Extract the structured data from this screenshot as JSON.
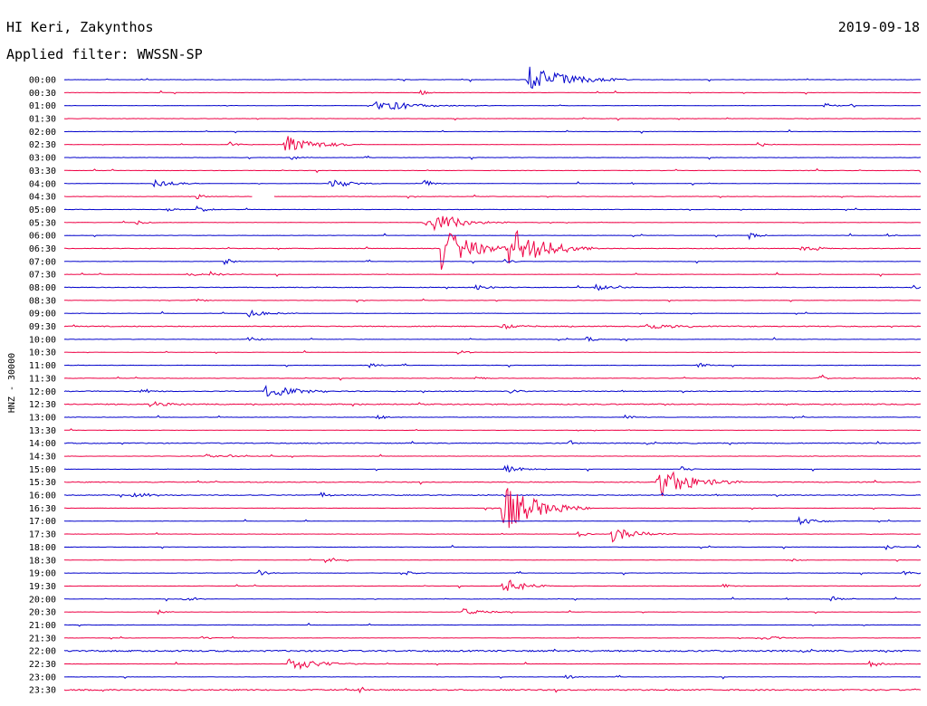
{
  "header": {
    "station": "HI Keri, Zakynthos",
    "filter": "Applied filter: WWSSN-SP",
    "date": "2019-09-18"
  },
  "chart_data": {
    "type": "line",
    "title": "HI Keri, Zakynthos",
    "subtitle": "Applied filter: WWSSN-SP",
    "date": "2019-09-18",
    "ylabel": "HNZ - 30000",
    "xlabel": "",
    "trace_minutes": 30,
    "colors": [
      "#0000cc",
      "#ee0044"
    ],
    "rows": [
      {
        "label": "00:00",
        "events": [
          [
            0.541,
            16,
            0.9,
            0.04
          ]
        ]
      },
      {
        "label": "00:30",
        "events": [
          [
            0.416,
            3,
            0.5,
            0.01
          ]
        ]
      },
      {
        "label": "01:00",
        "events": [
          [
            0.362,
            6,
            0.5,
            0.02
          ],
          [
            0.38,
            4,
            0.3,
            0.04
          ],
          [
            0.888,
            3,
            0.4,
            0.01
          ]
        ]
      },
      {
        "label": "01:30",
        "events": []
      },
      {
        "label": "02:00",
        "events": []
      },
      {
        "label": "02:30",
        "events": [
          [
            0.258,
            11,
            0.7,
            0.03
          ],
          [
            0.193,
            3,
            0.5,
            0.01
          ],
          [
            0.81,
            3,
            0.4,
            0.01
          ]
        ]
      },
      {
        "label": "03:00",
        "events": [
          [
            0.264,
            3,
            0.4,
            0.01
          ]
        ]
      },
      {
        "label": "03:30",
        "events": []
      },
      {
        "label": "04:00",
        "events": [
          [
            0.105,
            5,
            0.6,
            0.02
          ],
          [
            0.31,
            6,
            0.6,
            0.02
          ],
          [
            0.42,
            4,
            0.6,
            0.01
          ]
        ]
      },
      {
        "label": "04:30",
        "events": [
          [
            0.155,
            3,
            0.4,
            0.01
          ]
        ],
        "gap": [
          0.22,
          0.245
        ],
        "noise": 0.5
      },
      {
        "label": "05:00",
        "events": [
          [
            0.155,
            4,
            0.6,
            0.01
          ],
          [
            0.118,
            3,
            0.3,
            0.01
          ]
        ]
      },
      {
        "label": "05:30",
        "events": [
          [
            0.085,
            3,
            0.7,
            0.01
          ],
          [
            0.43,
            12,
            0.8,
            0.03
          ],
          [
            0.42,
            4,
            0.5,
            0.02
          ]
        ]
      },
      {
        "label": "06:00",
        "events": [
          [
            0.8,
            4,
            0.6,
            0.01
          ],
          [
            0.96,
            2,
            0.4,
            0.01
          ]
        ]
      },
      {
        "label": "06:30",
        "events": [
          [
            0.44,
            26,
            1.0,
            0.03
          ],
          [
            0.52,
            26,
            1.0,
            0.035
          ],
          [
            0.86,
            4,
            0.5,
            0.01
          ],
          [
            0.88,
            3,
            0.3,
            0.01
          ]
        ],
        "noise": 0.6
      },
      {
        "label": "07:00",
        "events": [
          [
            0.186,
            4,
            0.5,
            0.01
          ],
          [
            0.512,
            3,
            0.6,
            0.01
          ]
        ]
      },
      {
        "label": "07:30",
        "events": [
          [
            0.17,
            4,
            0.6,
            0.01
          ],
          [
            0.145,
            3,
            0.4,
            0.01
          ]
        ]
      },
      {
        "label": "08:00",
        "events": [
          [
            0.62,
            4,
            0.6,
            0.02
          ],
          [
            0.48,
            3,
            0.3,
            0.02
          ],
          [
            0.99,
            3,
            0.4,
            0.01
          ]
        ],
        "noise": 0.6
      },
      {
        "label": "08:30",
        "events": [
          [
            0.15,
            3,
            0.5,
            0.01
          ]
        ]
      },
      {
        "label": "09:00",
        "events": [
          [
            0.215,
            4,
            0.6,
            0.02
          ]
        ]
      },
      {
        "label": "09:30",
        "events": [
          [
            0.51,
            4,
            0.6,
            0.02
          ],
          [
            0.68,
            3,
            0.4,
            0.05
          ]
        ],
        "noise": 0.9
      },
      {
        "label": "10:00",
        "events": [
          [
            0.61,
            3,
            0.6,
            0.01
          ],
          [
            0.215,
            3,
            0.3,
            0.01
          ]
        ]
      },
      {
        "label": "10:30",
        "events": [
          [
            0.46,
            3,
            0.5,
            0.01
          ]
        ]
      },
      {
        "label": "11:00",
        "events": [
          [
            0.355,
            4,
            0.6,
            0.01
          ],
          [
            0.74,
            3,
            0.4,
            0.01
          ]
        ]
      },
      {
        "label": "11:30",
        "events": [
          [
            0.48,
            3,
            0.6,
            0.01
          ],
          [
            0.88,
            3,
            0.4,
            0.01
          ],
          [
            0.99,
            2,
            0.4,
            0.01
          ]
        ]
      },
      {
        "label": "12:00",
        "events": [
          [
            0.235,
            8,
            0.8,
            0.03
          ],
          [
            0.09,
            4,
            0.5,
            0.01
          ],
          [
            0.52,
            3,
            0.4,
            0.01
          ]
        ],
        "noise": 0.8
      },
      {
        "label": "12:30",
        "events": [
          [
            0.1,
            3,
            0.5,
            0.03
          ]
        ],
        "noise": 1.1
      },
      {
        "label": "13:00",
        "events": [
          [
            0.365,
            3,
            0.5,
            0.01
          ],
          [
            0.655,
            3,
            0.5,
            0.01
          ]
        ]
      },
      {
        "label": "13:30",
        "events": []
      },
      {
        "label": "14:00",
        "events": [
          [
            0.59,
            3,
            0.4,
            0.01
          ]
        ],
        "noise": 0.9
      },
      {
        "label": "14:30",
        "events": [
          [
            0.165,
            3,
            0.5,
            0.01
          ],
          [
            0.19,
            2,
            0.4,
            0.01
          ]
        ]
      },
      {
        "label": "15:00",
        "events": [
          [
            0.515,
            4,
            0.6,
            0.02
          ],
          [
            0.72,
            3,
            0.4,
            0.01
          ]
        ]
      },
      {
        "label": "15:30",
        "events": [
          [
            0.693,
            18,
            1.0,
            0.035
          ]
        ],
        "noise": 0.8
      },
      {
        "label": "16:00",
        "events": [
          [
            0.08,
            3,
            0.6,
            0.02
          ],
          [
            0.3,
            3,
            0.4,
            0.01
          ]
        ],
        "noise": 0.8
      },
      {
        "label": "16:30",
        "events": [
          [
            0.51,
            30,
            1.0,
            0.035
          ]
        ]
      },
      {
        "label": "17:00",
        "events": [
          [
            0.858,
            4,
            0.7,
            0.02
          ]
        ]
      },
      {
        "label": "17:30",
        "events": [
          [
            0.64,
            9,
            0.9,
            0.025
          ],
          [
            0.6,
            3,
            0.4,
            0.01
          ]
        ]
      },
      {
        "label": "18:00",
        "events": [
          [
            0.96,
            3,
            0.6,
            0.01
          ]
        ]
      },
      {
        "label": "18:30",
        "events": [
          [
            0.305,
            3,
            0.4,
            0.01
          ],
          [
            0.845,
            3,
            0.4,
            0.01
          ]
        ]
      },
      {
        "label": "19:00",
        "events": [
          [
            0.225,
            4,
            0.6,
            0.01
          ],
          [
            0.4,
            3,
            0.5,
            0.01
          ],
          [
            0.98,
            3,
            0.4,
            0.01
          ]
        ]
      },
      {
        "label": "19:30",
        "events": [
          [
            0.512,
            10,
            0.9,
            0.02
          ],
          [
            0.77,
            3,
            0.4,
            0.01
          ]
        ]
      },
      {
        "label": "20:00",
        "events": [
          [
            0.14,
            3,
            0.6,
            0.01
          ],
          [
            0.895,
            4,
            0.6,
            0.01
          ]
        ]
      },
      {
        "label": "20:30",
        "events": [
          [
            0.465,
            4,
            0.6,
            0.02
          ],
          [
            0.11,
            3,
            0.4,
            0.01
          ]
        ]
      },
      {
        "label": "21:00",
        "events": []
      },
      {
        "label": "21:30",
        "events": [
          [
            0.815,
            4,
            0.7,
            0.015
          ],
          [
            0.16,
            2,
            0.4,
            0.01
          ]
        ]
      },
      {
        "label": "22:00",
        "events": [],
        "noise": 1.6
      },
      {
        "label": "22:30",
        "events": [
          [
            0.262,
            8,
            0.8,
            0.03
          ],
          [
            0.94,
            4,
            0.6,
            0.015
          ]
        ]
      },
      {
        "label": "23:00",
        "events": [
          [
            0.585,
            3,
            0.5,
            0.01
          ]
        ]
      },
      {
        "label": "23:30",
        "events": [
          [
            0.345,
            3,
            0.4,
            0.01
          ]
        ],
        "noise": 1.3
      }
    ]
  }
}
